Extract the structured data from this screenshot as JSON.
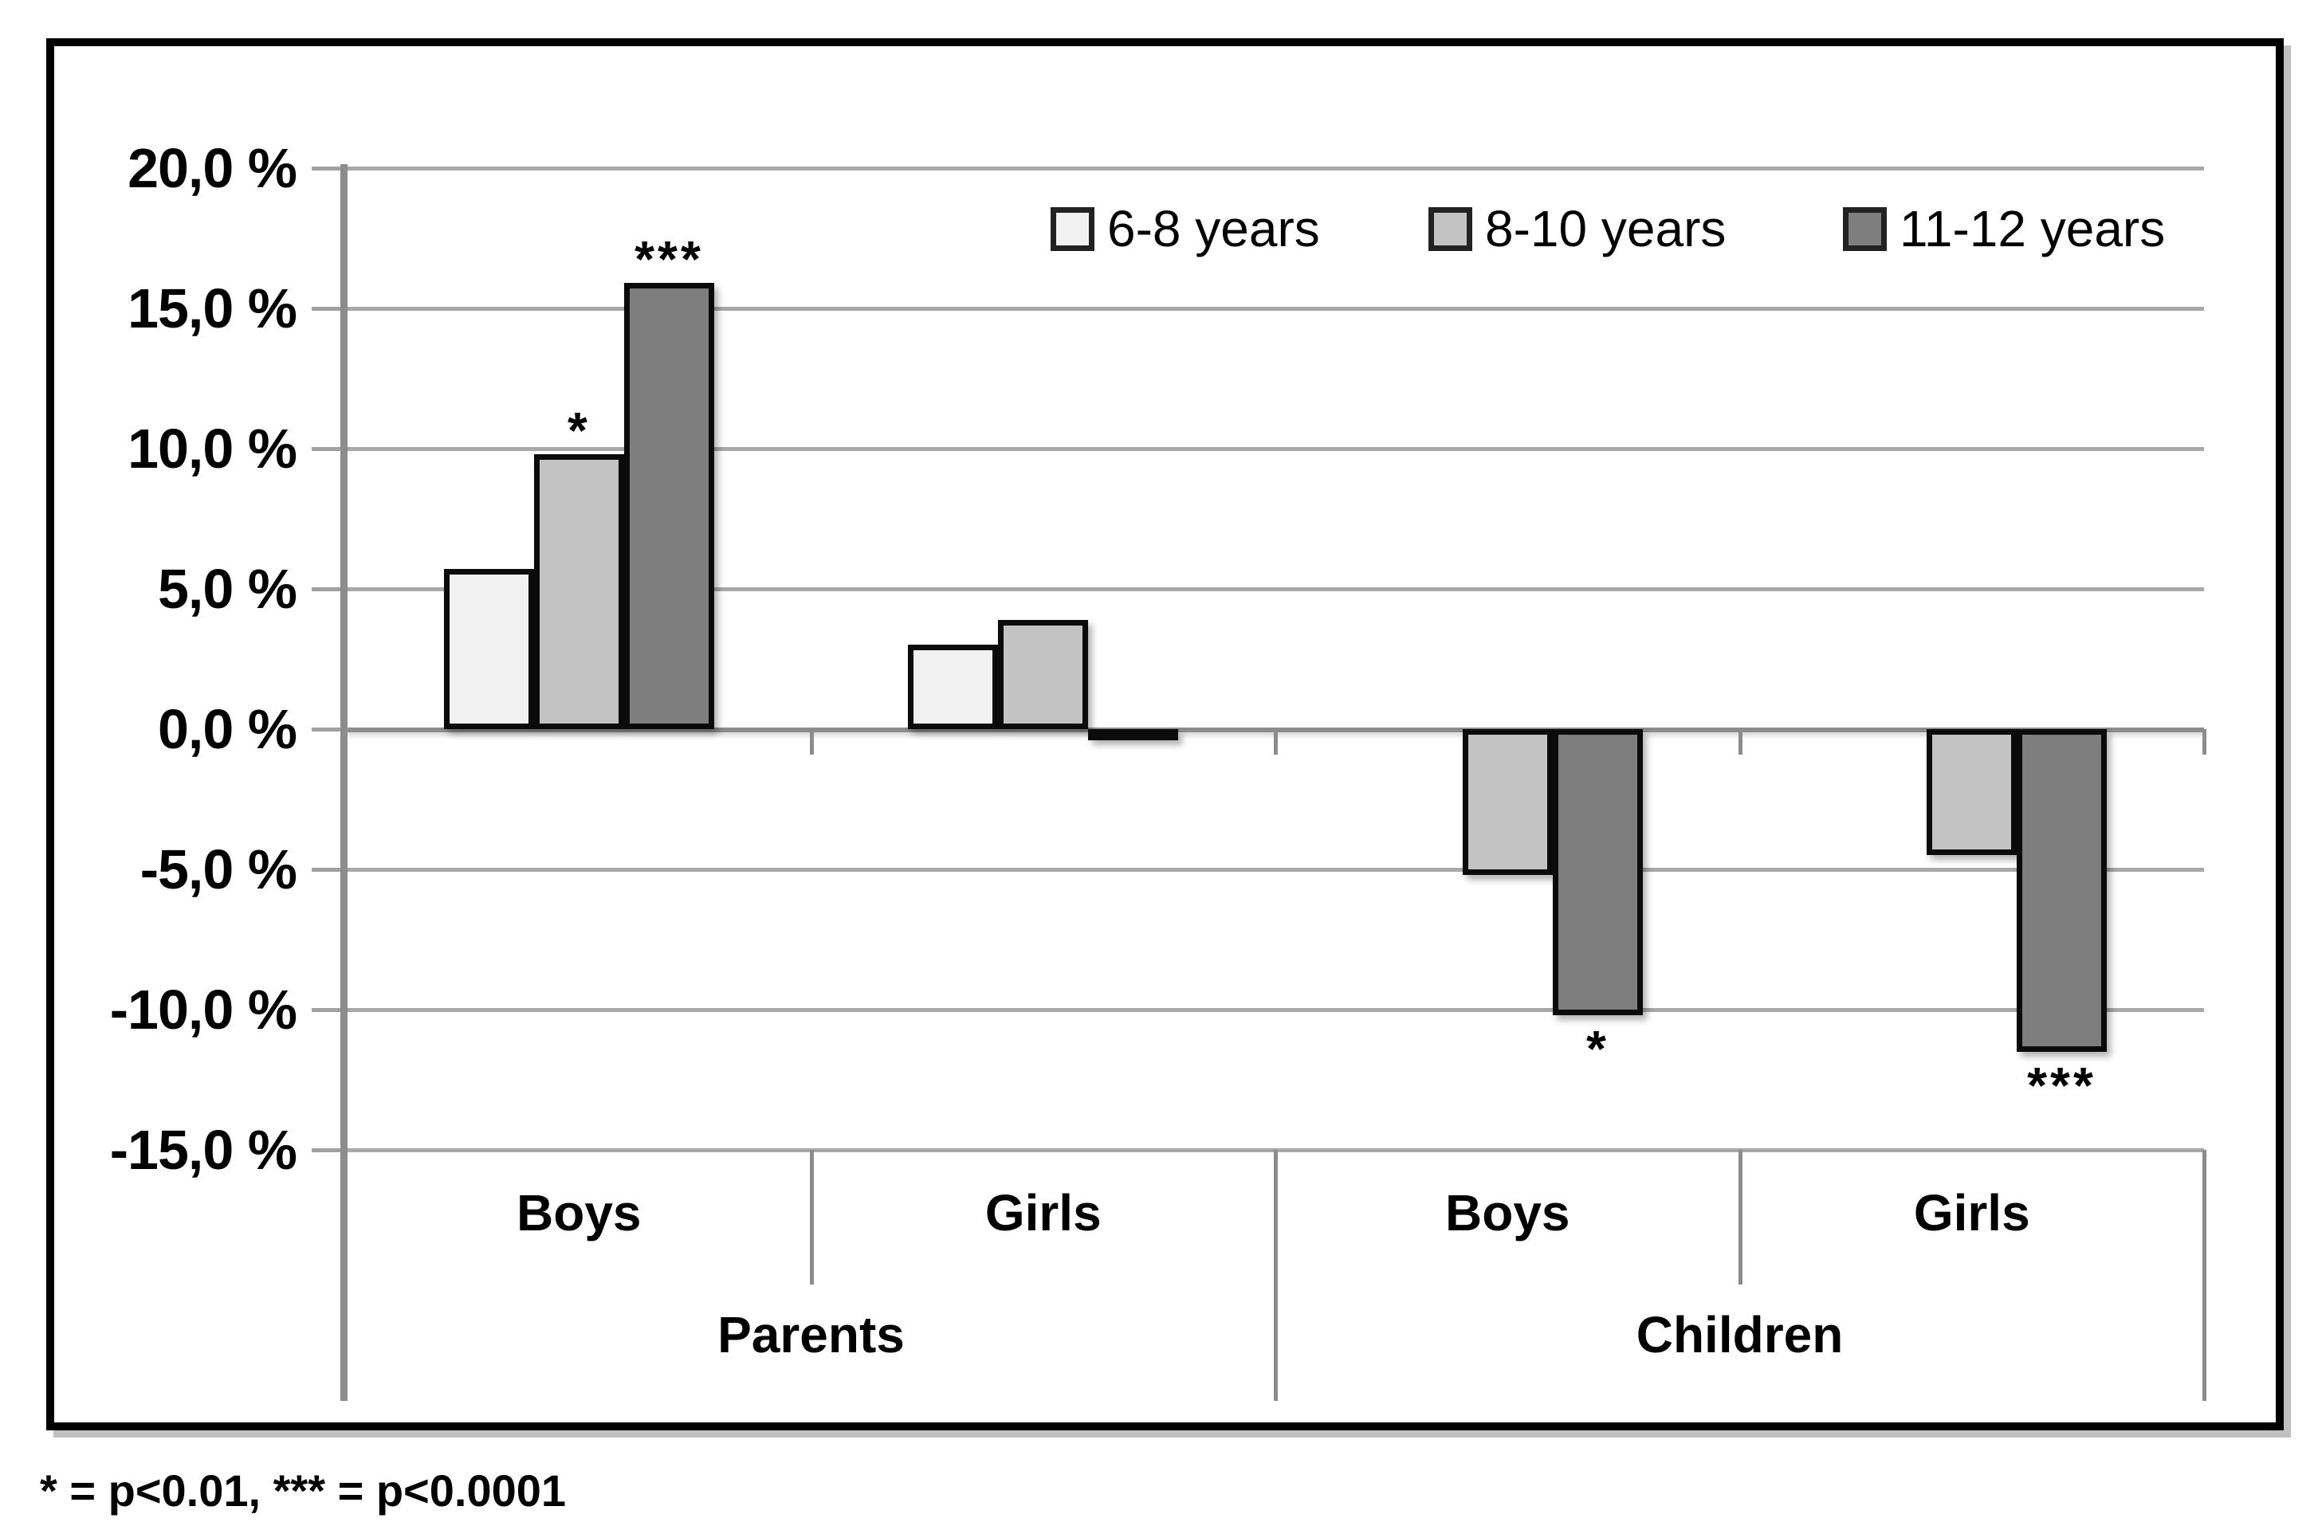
{
  "colors": {
    "background": "#ffffff",
    "figure_border": "#000000",
    "gridline": "#a8a8a8",
    "zero_line": "#8c8c8c",
    "axis_line": "#8c8c8c",
    "bar_border": "#0b0b0b",
    "series_6_8": "#f1f1f1",
    "series_8_10": "#c3c3c3",
    "series_11_12": "#7e7e7e"
  },
  "chart_data": {
    "type": "bar",
    "title": "",
    "grid": true,
    "y_axis": {
      "min": -15,
      "max": 20,
      "step": 5,
      "unit": "%",
      "tick_labels": [
        "20,0 %",
        "15,0 %",
        "10,0 %",
        "5,0 %",
        "0,0 %",
        "-5,0 %",
        "-10,0 %",
        "-15,0 %"
      ]
    },
    "categories": [
      "Boys",
      "Girls",
      "Boys",
      "Girls"
    ],
    "super_categories": [
      {
        "label": "Parents",
        "groups": [
          0,
          1
        ]
      },
      {
        "label": "Children",
        "groups": [
          2,
          3
        ]
      }
    ],
    "series": [
      {
        "name": "6-8 years",
        "color": "#f1f1f1",
        "values": [
          5.7,
          3.0,
          null,
          null
        ]
      },
      {
        "name": "8-10 years",
        "color": "#c3c3c3",
        "values": [
          9.8,
          3.9,
          -5.2,
          -4.5
        ]
      },
      {
        "name": "11-12 years",
        "color": "#7e7e7e",
        "values": [
          15.9,
          -0.4,
          -10.2,
          -11.5
        ]
      }
    ],
    "annotations": [
      {
        "group": 0,
        "series": 1,
        "text": "*",
        "position": "above"
      },
      {
        "group": 0,
        "series": 2,
        "text": "***",
        "position": "above"
      },
      {
        "group": 2,
        "series": 2,
        "text": "*",
        "position": "below"
      },
      {
        "group": 3,
        "series": 2,
        "text": "***",
        "position": "below"
      }
    ],
    "legend": {
      "position": "top-right-inside",
      "entries": [
        "6-8 years",
        "8-10 years",
        "11-12 years"
      ]
    },
    "footnote": "* = p<0.01, *** = p<0.0001"
  }
}
